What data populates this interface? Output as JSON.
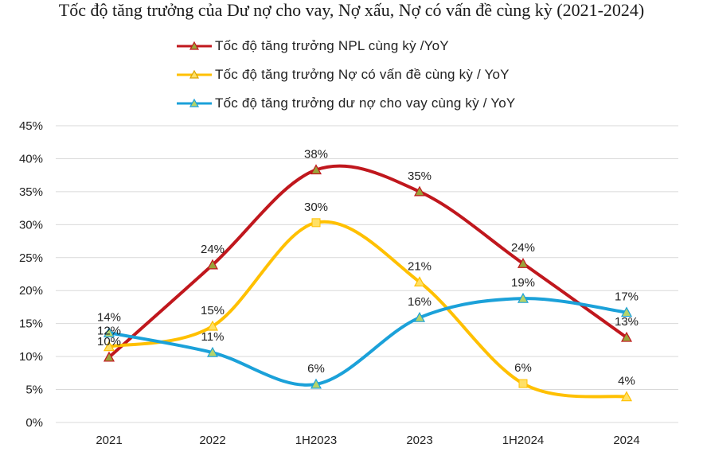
{
  "chart_data": {
    "type": "line",
    "title": "Tốc độ tăng trưởng của Dư nợ cho vay, Nợ xấu, Nợ có vấn đề cùng kỳ  (2021-2024)",
    "categories": [
      "2021",
      "2022",
      "1H2023",
      "2023",
      "1H2024",
      "2024"
    ],
    "ylim": [
      0,
      45
    ],
    "yticks": [
      0,
      5,
      10,
      15,
      20,
      25,
      30,
      35,
      40,
      45
    ],
    "ytick_labels": [
      "0%",
      "5%",
      "10%",
      "15%",
      "20%",
      "25%",
      "30%",
      "35%",
      "40%",
      "45%"
    ],
    "grid": true,
    "legend_position": "top",
    "series": [
      {
        "name": "Tốc độ tăng trưởng NPL cùng kỳ /YoY",
        "color": "#c0171d",
        "marker_fill": "#9aa33a",
        "values": [
          9.9,
          23.9,
          38.3,
          35.0,
          24.1,
          12.9
        ],
        "labels": [
          "10%",
          "24%",
          "38%",
          "35%",
          "24%",
          "13%"
        ]
      },
      {
        "name": "Tốc độ tăng trưởng Nợ có vấn đề cùng kỳ / YoY",
        "color": "#ffc000",
        "marker_fill": "#ffe066",
        "values": [
          11.5,
          14.6,
          30.3,
          21.3,
          5.9,
          3.9
        ],
        "labels": [
          "12%",
          "15%",
          "30%",
          "21%",
          "6%",
          "4%"
        ]
      },
      {
        "name": "Tốc độ tăng trưởng dư nợ cho vay cùng kỳ / YoY",
        "color": "#1ba1d9",
        "marker_fill": "#b5d36a",
        "values": [
          13.6,
          10.6,
          5.8,
          15.9,
          18.8,
          16.7
        ],
        "labels": [
          "14%",
          "11%",
          "6%",
          "16%",
          "19%",
          "17%"
        ]
      }
    ]
  }
}
